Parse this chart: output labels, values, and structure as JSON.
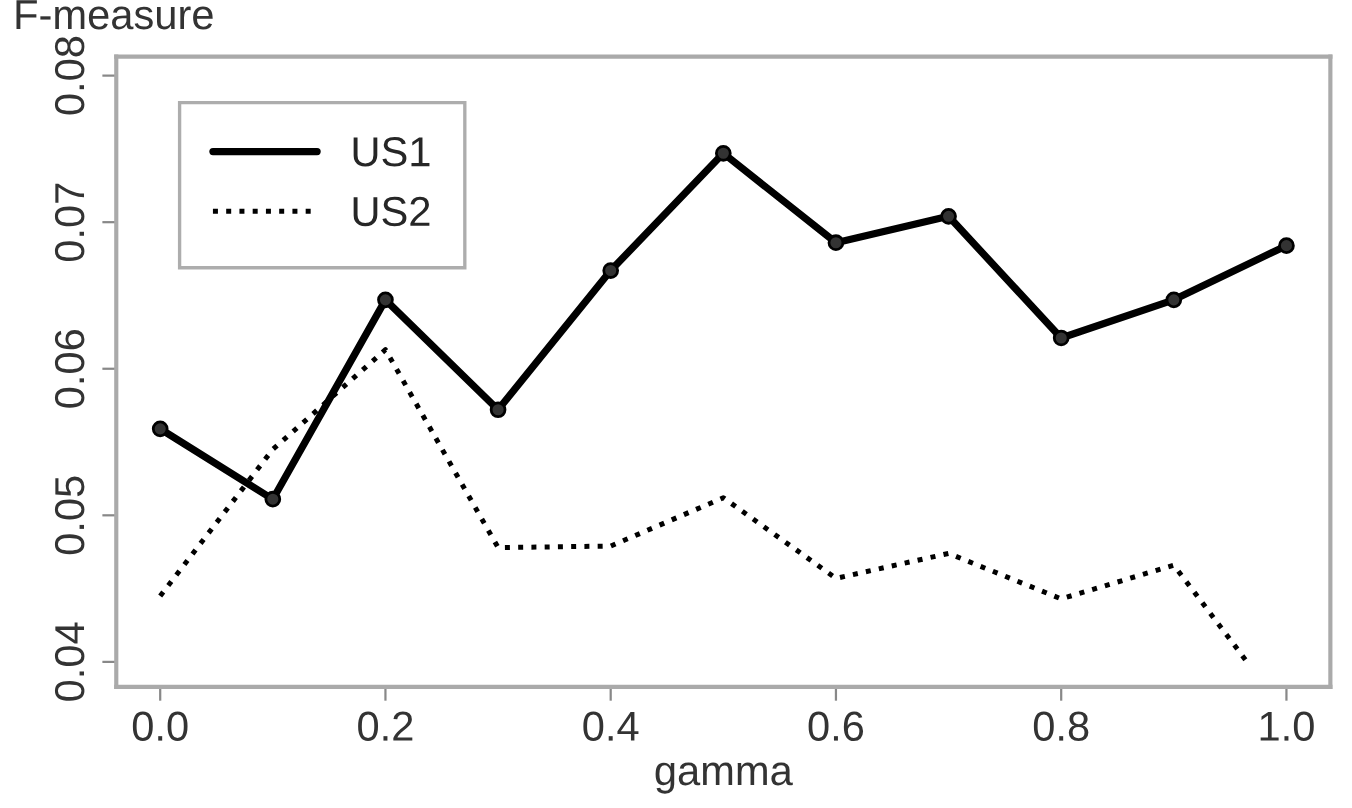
{
  "chart_data": {
    "type": "line",
    "xlabel": "gamma",
    "ylabel": "F-measure",
    "xlim": [
      -0.039,
      1.039
    ],
    "ylim": [
      0.0383,
      0.0813
    ],
    "xticks": [
      {
        "value": 0,
        "label": "0.0"
      },
      0.2,
      0.4,
      0.6,
      0.8,
      {
        "value": 1,
        "label": "1.0"
      }
    ],
    "yticks": [
      0.04,
      0.05,
      0.06,
      0.07,
      0.08
    ],
    "grid": false,
    "legend": "top left",
    "series": [
      {
        "name": "US1",
        "color": "#000000",
        "marker": "circle",
        "line_style": "solid",
        "x": [
          0,
          0.1,
          0.2,
          0.3,
          0.4,
          0.5,
          0.6,
          0.7,
          0.8,
          0.9,
          1.0
        ],
        "values": [
          0.0559,
          0.0511,
          0.0647,
          0.0572,
          0.0667,
          0.0747,
          0.0686,
          0.0704,
          0.0621,
          0.0647,
          0.0684
        ]
      },
      {
        "name": "US2",
        "color": "#000000",
        "marker": "none",
        "line_style": "dotted",
        "x": [
          0,
          0.1,
          0.2,
          0.3,
          0.4,
          0.5,
          0.6,
          0.7,
          0.8,
          0.9,
          0.965
        ],
        "values": [
          0.0445,
          0.0545,
          0.0613,
          0.0478,
          0.0479,
          0.0512,
          0.0457,
          0.0474,
          0.0443,
          0.0466,
          0.04
        ]
      }
    ]
  }
}
